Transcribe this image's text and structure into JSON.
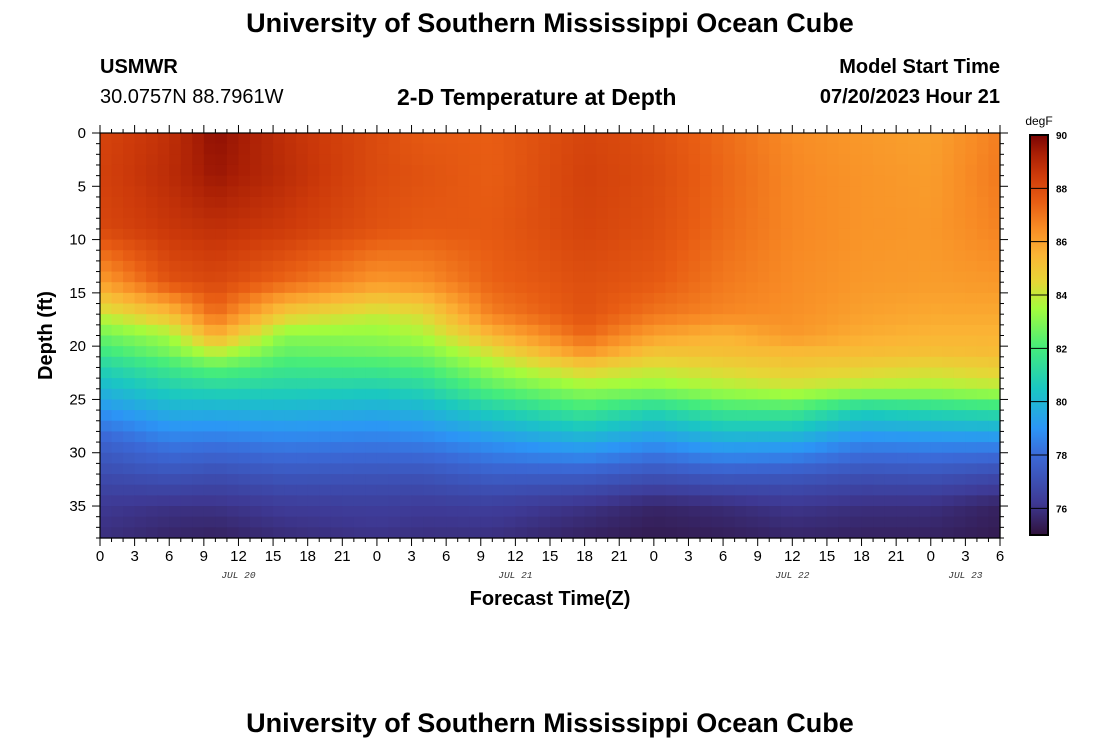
{
  "header": {
    "title": "University of Southern Mississippi Ocean Cube",
    "station": "USMWR",
    "coords": "30.0757N  88.7961W",
    "subtitle": "2-D Temperature at Depth",
    "model_label": "Model Start Time",
    "model_time": "07/20/2023 Hour 21"
  },
  "footer": {
    "title": "University of Southern Mississippi Ocean Cube"
  },
  "chart_data": {
    "type": "heatmap",
    "title": "2-D Temperature at Depth",
    "xlabel": "Forecast Time(Z)",
    "ylabel": "Depth (ft)",
    "x_start_hour": 0,
    "x_end_hour": 78,
    "x_tick_labels": [
      "0",
      "3",
      "6",
      "9",
      "12",
      "15",
      "18",
      "21",
      "0",
      "3",
      "6",
      "9",
      "12",
      "15",
      "18",
      "21",
      "0",
      "3",
      "6",
      "9",
      "12",
      "15",
      "18",
      "21",
      "0",
      "3",
      "6"
    ],
    "date_labels": [
      {
        "label": "JUL 20",
        "hour": 12
      },
      {
        "label": "JUL 21",
        "hour": 36
      },
      {
        "label": "JUL 22",
        "hour": 60
      },
      {
        "label": "JUL 23",
        "hour": 75
      }
    ],
    "ylim": [
      0,
      38
    ],
    "y_ticks": [
      0,
      5,
      10,
      15,
      20,
      25,
      30,
      35
    ],
    "colorbar": {
      "label": "degF",
      "min": 75,
      "max": 90,
      "ticks": [
        76,
        78,
        80,
        82,
        84,
        86,
        88,
        90
      ],
      "stops": [
        {
          "v": 75,
          "c": "#30123b"
        },
        {
          "v": 76.2,
          "c": "#3e3994"
        },
        {
          "v": 78,
          "c": "#3b6ad8"
        },
        {
          "v": 79,
          "c": "#2c95f6"
        },
        {
          "v": 80.5,
          "c": "#1ac7c2"
        },
        {
          "v": 82,
          "c": "#44ec7c"
        },
        {
          "v": 83.5,
          "c": "#a4fc3c"
        },
        {
          "v": 84.5,
          "c": "#e6d636"
        },
        {
          "v": 85.5,
          "c": "#fbb535"
        },
        {
          "v": 86.5,
          "c": "#f88c25"
        },
        {
          "v": 87.5,
          "c": "#e85d13"
        },
        {
          "v": 88.5,
          "c": "#cd3a0a"
        },
        {
          "v": 89.3,
          "c": "#a91f05"
        },
        {
          "v": 90,
          "c": "#7a0403"
        }
      ]
    },
    "temperature_grid": {
      "depth_ft": [
        0,
        4,
        9,
        14,
        17,
        19,
        20.5,
        22,
        24,
        26,
        29,
        32,
        35,
        38
      ],
      "time_hours": [
        0,
        6,
        10,
        16,
        24,
        28,
        34,
        42,
        48,
        54,
        60,
        66,
        72,
        78
      ],
      "values_degF": [
        [
          88.2,
          88.8,
          89.7,
          88.8,
          88.0,
          87.6,
          87.5,
          88.2,
          87.9,
          87.2,
          86.5,
          86.2,
          86.0,
          86.8
        ],
        [
          88.3,
          88.9,
          89.5,
          88.9,
          88.0,
          87.8,
          87.5,
          88.3,
          88.0,
          87.3,
          86.6,
          86.3,
          86.1,
          86.9
        ],
        [
          88.1,
          88.6,
          88.8,
          88.5,
          87.8,
          87.6,
          87.6,
          88.2,
          87.9,
          87.2,
          86.6,
          86.3,
          86.2,
          86.7
        ],
        [
          86.0,
          87.8,
          88.1,
          87.3,
          86.2,
          86.4,
          87.4,
          87.9,
          87.6,
          86.9,
          86.5,
          86.2,
          86.1,
          86.2
        ],
        [
          84.0,
          85.2,
          87.2,
          84.8,
          84.0,
          84.4,
          86.8,
          87.8,
          87.0,
          86.6,
          86.4,
          86.0,
          85.8,
          85.8
        ],
        [
          82.6,
          83.5,
          85.6,
          83.1,
          83.2,
          83.6,
          85.4,
          87.3,
          86.0,
          85.5,
          86.2,
          85.7,
          85.5,
          85.5
        ],
        [
          81.8,
          82.8,
          84.0,
          82.5,
          82.7,
          82.9,
          84.3,
          86.3,
          85.1,
          85.2,
          85.4,
          85.3,
          85.2,
          85.3
        ],
        [
          80.9,
          81.8,
          82.4,
          81.8,
          81.9,
          82.1,
          83.4,
          84.8,
          84.2,
          84.6,
          84.9,
          84.7,
          84.5,
          84.8
        ],
        [
          80.0,
          80.8,
          81.0,
          80.9,
          80.8,
          81.0,
          82.3,
          83.3,
          83.1,
          83.6,
          84.0,
          83.6,
          83.5,
          83.8
        ],
        [
          79.0,
          79.8,
          79.8,
          79.9,
          79.7,
          79.9,
          80.8,
          81.8,
          81.0,
          81.8,
          81.9,
          80.8,
          81.1,
          81.4
        ],
        [
          77.7,
          78.4,
          78.3,
          78.5,
          78.4,
          78.5,
          79.0,
          79.6,
          79.0,
          79.6,
          79.5,
          78.7,
          78.8,
          78.8
        ],
        [
          76.9,
          77.2,
          77.0,
          77.3,
          77.2,
          77.2,
          77.6,
          77.6,
          77.2,
          77.5,
          77.4,
          77.1,
          77.2,
          76.9
        ],
        [
          76.2,
          76.0,
          76.0,
          76.3,
          76.4,
          76.3,
          76.4,
          76.0,
          75.6,
          75.8,
          76.1,
          75.9,
          75.9,
          75.5
        ],
        [
          75.9,
          75.6,
          75.5,
          75.8,
          76.0,
          75.9,
          75.9,
          75.5,
          75.3,
          75.4,
          75.6,
          75.5,
          75.5,
          75.3
        ]
      ]
    }
  }
}
